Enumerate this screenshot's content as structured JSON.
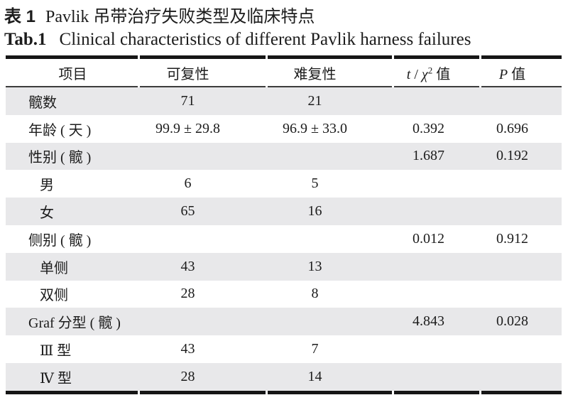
{
  "title": {
    "zh_label": "表 1",
    "zh_text": "Pavlik 吊带治疗失败类型及临床特点",
    "en_label": "Tab.1",
    "en_text": "Clinical characteristics of different Pavlik harness failures"
  },
  "table": {
    "header": {
      "item": "项目",
      "reducible": "可复性",
      "irreducible": "难复性",
      "stat_t": "t",
      "stat_slash": " / ",
      "stat_chi": "χ",
      "stat_sup": "2",
      "stat_suffix": " 值",
      "p_italic": "P",
      "p_suffix": " 值"
    },
    "rows": [
      {
        "label": "髋数",
        "reducible": "71",
        "irreducible": "21",
        "stat": "",
        "p": ""
      },
      {
        "label": "年龄 ( 天 )",
        "reducible": "99.9 ± 29.8",
        "irreducible": "96.9 ± 33.0",
        "stat": "0.392",
        "p": "0.696"
      },
      {
        "label": "性别 ( 髋 )",
        "reducible": "",
        "irreducible": "",
        "stat": "1.687",
        "p": "0.192"
      },
      {
        "label": "男",
        "reducible": "6",
        "irreducible": "5",
        "stat": "",
        "p": ""
      },
      {
        "label": "女",
        "reducible": "65",
        "irreducible": "16",
        "stat": "",
        "p": ""
      },
      {
        "label": "侧别 ( 髋 )",
        "reducible": "",
        "irreducible": "",
        "stat": "0.012",
        "p": "0.912"
      },
      {
        "label": "单侧",
        "reducible": "43",
        "irreducible": "13",
        "stat": "",
        "p": ""
      },
      {
        "label": "双侧",
        "reducible": "28",
        "irreducible": "8",
        "stat": "",
        "p": ""
      },
      {
        "label": "Graf 分型 ( 髋 )",
        "reducible": "",
        "irreducible": "",
        "stat": "4.843",
        "p": "0.028"
      },
      {
        "label": "Ⅲ 型",
        "reducible": "43",
        "irreducible": "7",
        "stat": "",
        "p": ""
      },
      {
        "label": "Ⅳ 型",
        "reducible": "28",
        "irreducible": "14",
        "stat": "",
        "p": ""
      }
    ]
  },
  "colors": {
    "shaded_row": "#e8e8ea",
    "thick_rule": "#161616",
    "thin_rule": "#3c3c3c",
    "text": "#1c1c1c"
  }
}
